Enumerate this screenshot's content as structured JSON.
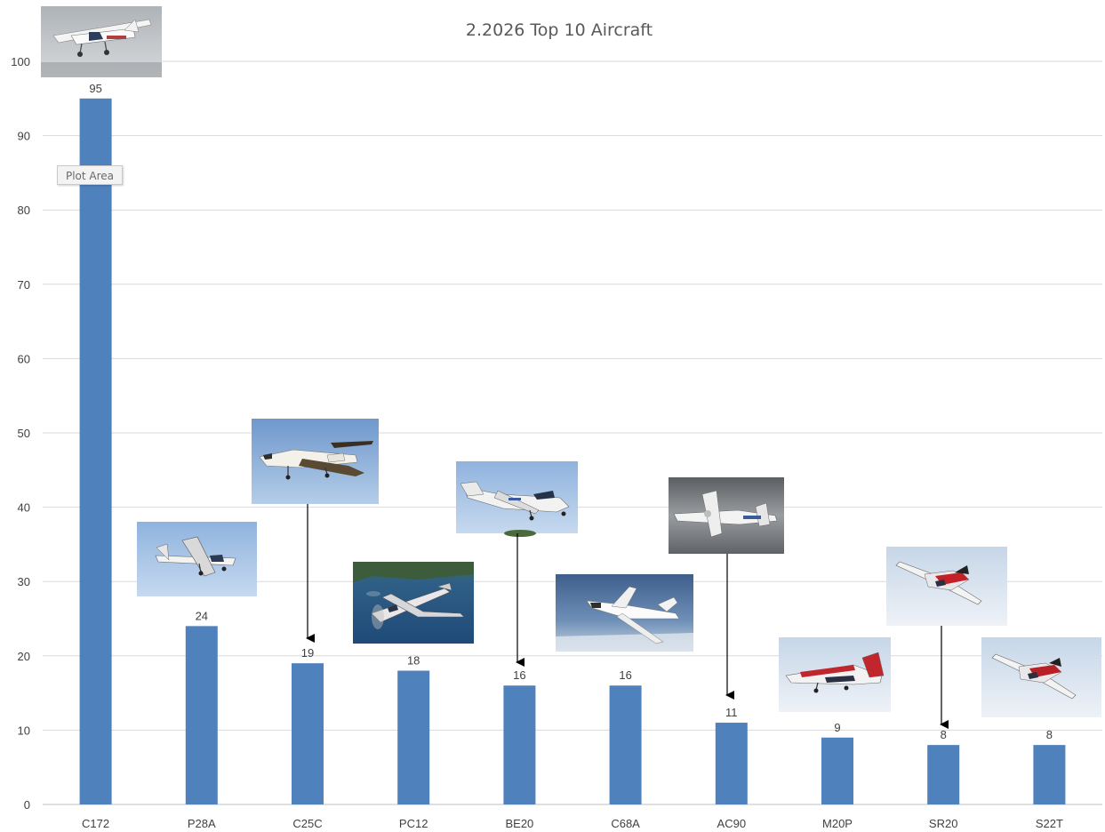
{
  "chart_data": {
    "type": "bar",
    "title": "2.2026 Top 10 Aircraft",
    "categories": [
      "C172",
      "P28A",
      "C25C",
      "PC12",
      "BE20",
      "C68A",
      "AC90",
      "M20P",
      "SR20",
      "S22T"
    ],
    "values": [
      95,
      24,
      19,
      18,
      16,
      16,
      11,
      9,
      8,
      8
    ],
    "data_labels": [
      "95",
      "24",
      "19",
      "18",
      "16",
      "16",
      "11",
      "9",
      "8",
      "8"
    ],
    "ylim": [
      0,
      100
    ],
    "yticks": [
      0,
      10,
      20,
      30,
      40,
      50,
      60,
      70,
      80,
      90,
      100
    ],
    "ytick_labels": [
      "0",
      "10",
      "20",
      "30",
      "40",
      "50",
      "60",
      "70",
      "80",
      "90",
      "100"
    ],
    "grid": true,
    "bar_color": "#4f81bd",
    "grid_color": "#d9d9d9"
  },
  "tooltip": {
    "label": "Plot Area"
  },
  "photos": [
    {
      "for": "C172",
      "icon": "cessna-172-photo",
      "arrow": false
    },
    {
      "for": "P28A",
      "icon": "piper-28-photo",
      "arrow": false
    },
    {
      "for": "C25C",
      "icon": "citation-cj4-photo",
      "arrow": true
    },
    {
      "for": "PC12",
      "icon": "pilatus-pc12-photo",
      "arrow": false
    },
    {
      "for": "BE20",
      "icon": "king-air-200-photo",
      "arrow": true
    },
    {
      "for": "C68A",
      "icon": "citation-latitude-photo",
      "arrow": false
    },
    {
      "for": "AC90",
      "icon": "king-air-c90-photo",
      "arrow": true
    },
    {
      "for": "M20P",
      "icon": "mooney-m20p-photo",
      "arrow": false
    },
    {
      "for": "SR20",
      "icon": "cirrus-sr20-photo",
      "arrow": true
    },
    {
      "for": "S22T",
      "icon": "cirrus-sr22t-photo",
      "arrow": false
    }
  ]
}
